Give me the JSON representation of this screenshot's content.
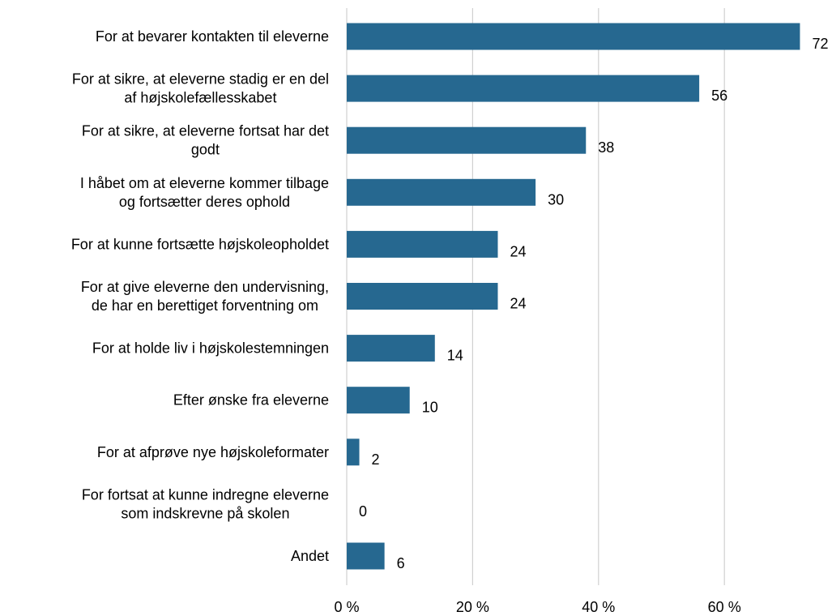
{
  "chart_data": {
    "type": "bar",
    "orientation": "horizontal",
    "title": "",
    "xlabel": "",
    "ylabel": "",
    "categories": [
      [
        "For at bevarer kontakten til eleverne"
      ],
      [
        "For at sikre, at eleverne stadig er en del",
        "af højskolefællesskabet"
      ],
      [
        "For at sikre, at eleverne fortsat har det",
        "godt"
      ],
      [
        "I håbet om at eleverne kommer tilbage",
        "og fortsætter deres ophold"
      ],
      [
        "For at kunne fortsætte højskoleopholdet"
      ],
      [
        "For at give eleverne den undervisning,",
        "de har en berettiget forventning om"
      ],
      [
        "For at holde liv i højskolestemningen"
      ],
      [
        "Efter ønske fra eleverne"
      ],
      [
        "For at afprøve nye højskoleformater"
      ],
      [
        "For fortsat at kunne indregne eleverne",
        "som indskrevne på skolen"
      ],
      [
        "Andet"
      ]
    ],
    "values": [
      72,
      56,
      38,
      30,
      24,
      24,
      14,
      10,
      2,
      0,
      6
    ],
    "data_labels": [
      "72",
      "56",
      "38",
      "30",
      "24",
      "24",
      "14",
      "10",
      "2",
      "0",
      "6"
    ],
    "xlim": [
      0,
      72
    ],
    "xticks": [
      0,
      20,
      40,
      60
    ],
    "xtick_labels": [
      "0 %",
      "20 %",
      "40 %",
      "60 %"
    ],
    "grid": true,
    "legend": "none",
    "bar_color": "#266890"
  }
}
